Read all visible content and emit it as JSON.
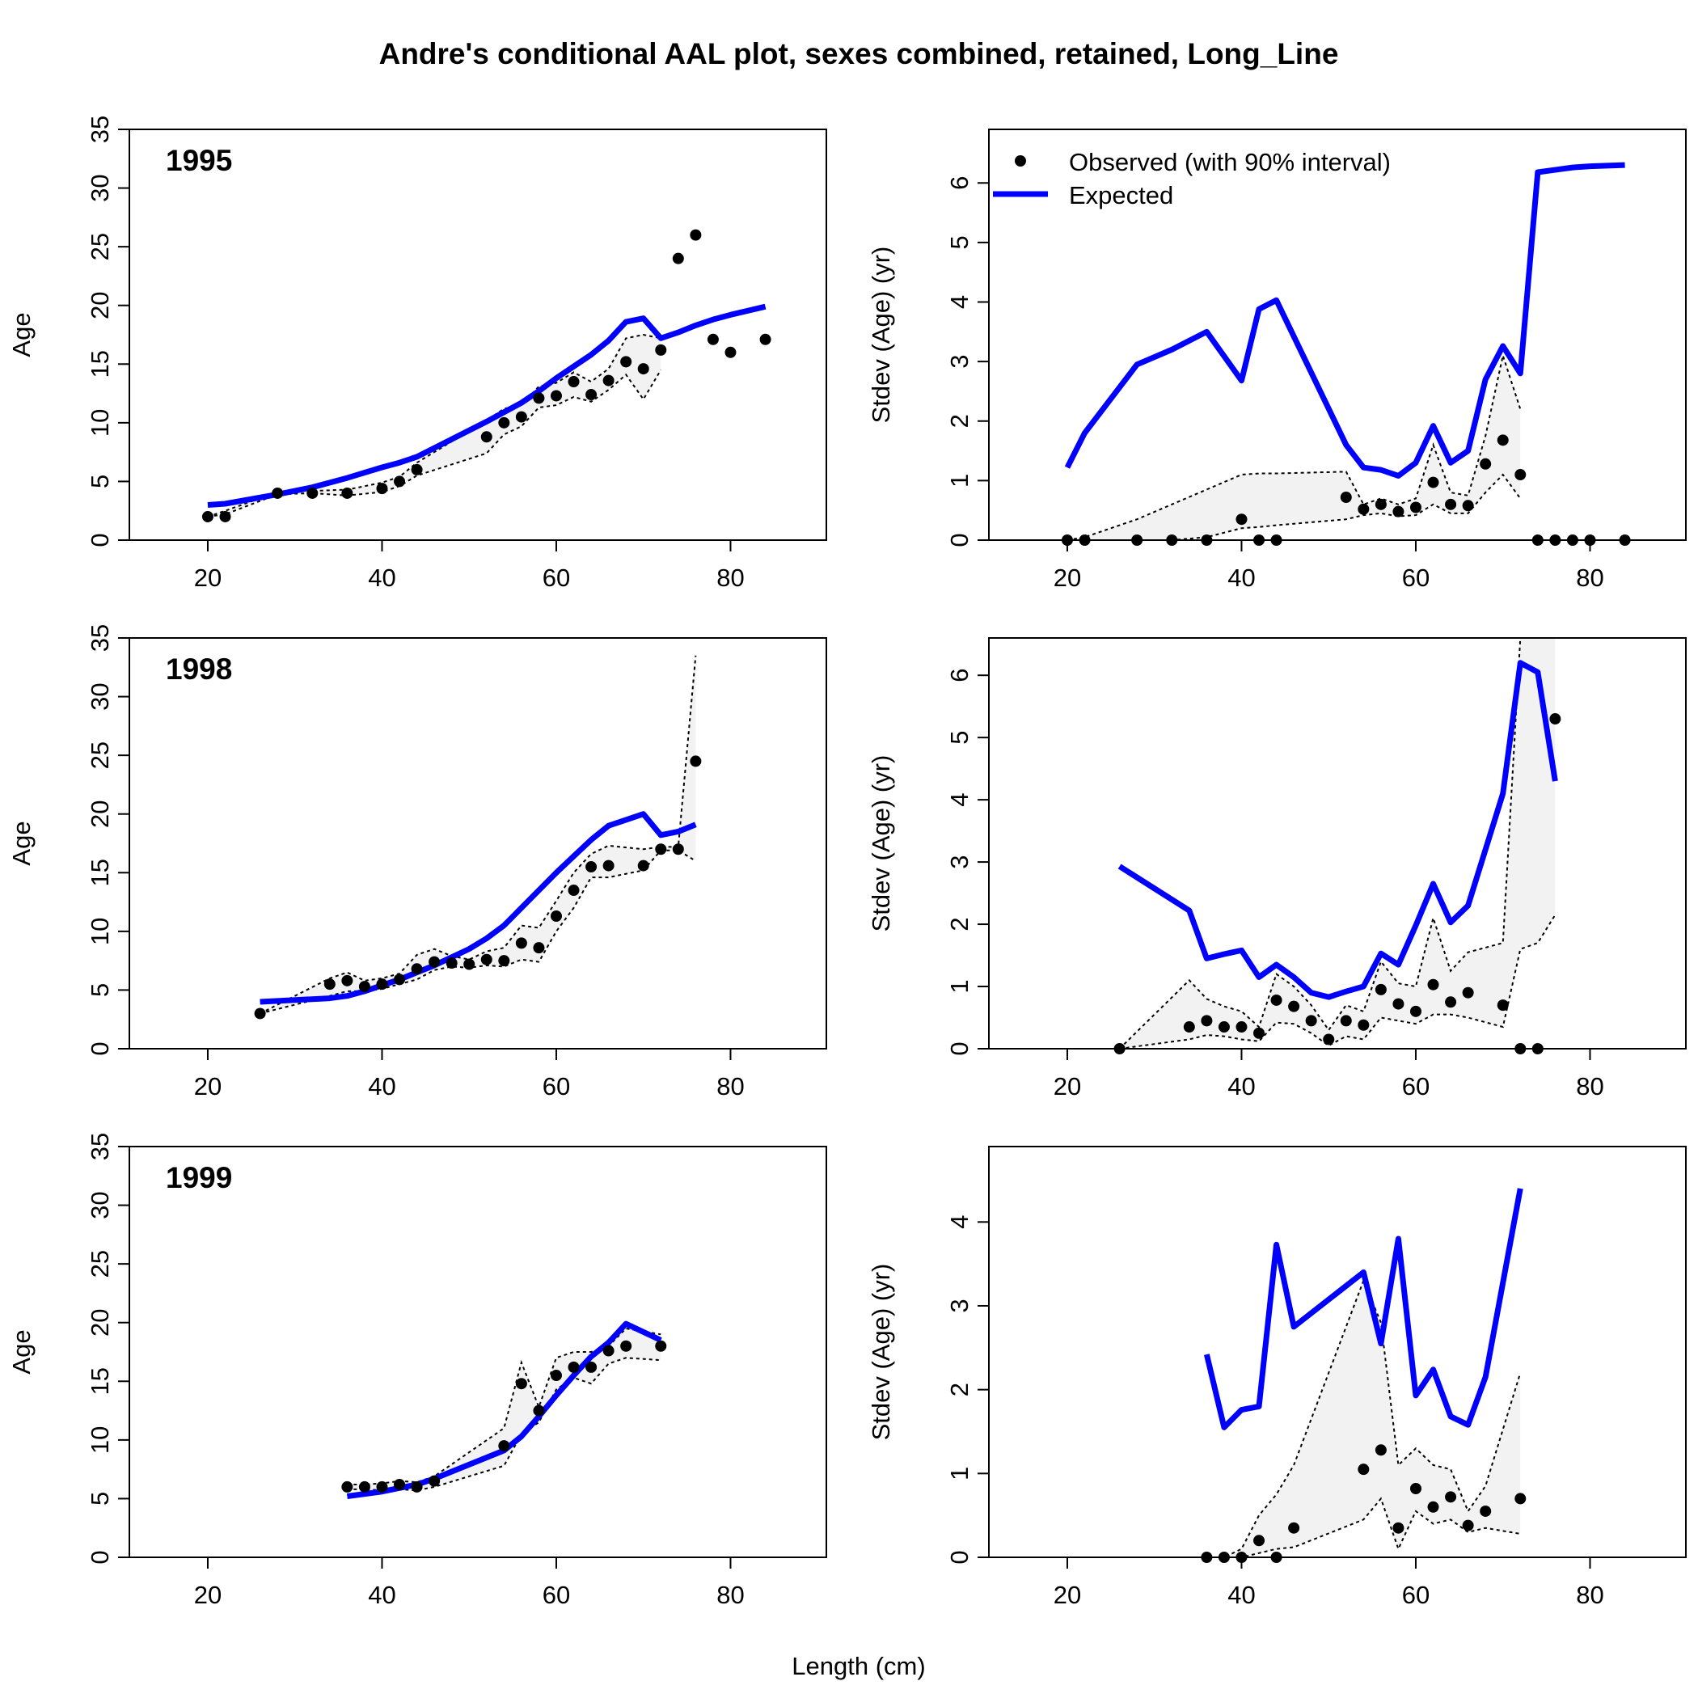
{
  "figure": {
    "title": "Andre's conditional AAL plot, sexes combined, retained, Long_Line",
    "xlabel": "Length (cm)"
  },
  "legend": {
    "observed_label": "Observed (with 90% interval)",
    "expected_label": "Expected",
    "placement": "top-left"
  },
  "colors": {
    "expected": "#0000ff",
    "observed": "#000000",
    "interval_fill": "#f2f2f2",
    "interval_line": "#000000"
  },
  "chart_data": [
    {
      "type": "line",
      "year": "1995",
      "ylabel": "Age",
      "xlim": [
        11,
        91
      ],
      "ylim": [
        0,
        35
      ],
      "xticks": [
        20,
        40,
        60,
        80
      ],
      "yticks": [
        0,
        5,
        10,
        15,
        20,
        25,
        30,
        35
      ],
      "x": [
        20,
        22,
        28,
        32,
        36,
        40,
        42,
        44,
        52,
        54,
        56,
        58,
        60,
        62,
        64,
        66,
        68,
        70,
        72,
        74,
        76,
        78,
        80,
        84
      ],
      "observed": [
        2,
        2,
        4,
        4,
        4,
        4.4,
        5,
        6,
        8.8,
        10,
        10.5,
        12.1,
        12.3,
        13.5,
        12.4,
        13.6,
        15.2,
        14.6,
        16.2,
        24,
        26,
        17.1,
        16,
        17.1
      ],
      "expected": [
        3,
        3.1,
        3.9,
        4.5,
        5.3,
        6.2,
        6.6,
        7.1,
        10.1,
        10.9,
        11.7,
        12.7,
        13.8,
        14.8,
        15.8,
        17,
        18.6,
        18.9,
        17.2,
        17.7,
        18.3,
        18.8,
        19.2,
        19.9
      ],
      "interval_lower": [
        2,
        2.2,
        3.9,
        4,
        3.8,
        4.1,
        4.6,
        5.5,
        7.4,
        9,
        9.7,
        11.3,
        11.5,
        12.2,
        11.8,
        12.8,
        14.1,
        12,
        14.5,
        null,
        null,
        null,
        null,
        null
      ],
      "interval_upper": [
        2,
        2.5,
        4.1,
        4.2,
        4.3,
        4.9,
        5.4,
        6.6,
        10.2,
        11.2,
        11.5,
        13.1,
        13.4,
        14.3,
        13.5,
        14.6,
        17.2,
        17.5,
        17.2,
        null,
        null,
        null,
        null,
        null
      ]
    },
    {
      "type": "line",
      "ylabel": "Stdev (Age) (yr)",
      "xlim": [
        11,
        91
      ],
      "ylim": [
        0,
        6.9
      ],
      "xticks": [
        20,
        40,
        60,
        80
      ],
      "yticks": [
        0,
        1,
        2,
        3,
        4,
        5,
        6
      ],
      "x": [
        20,
        22,
        28,
        32,
        36,
        40,
        42,
        44,
        52,
        54,
        56,
        58,
        60,
        62,
        64,
        66,
        68,
        70,
        72,
        74,
        76,
        78,
        80,
        84
      ],
      "observed": [
        0,
        0,
        0,
        0,
        0,
        0.35,
        0,
        0,
        0.72,
        0.52,
        0.6,
        0.48,
        0.55,
        0.97,
        0.6,
        0.58,
        1.28,
        1.68,
        1.1,
        0,
        0,
        0,
        0,
        0
      ],
      "expected": [
        1.22,
        1.8,
        2.95,
        3.2,
        3.5,
        2.68,
        3.88,
        4.03,
        1.6,
        1.22,
        1.18,
        1.08,
        1.3,
        1.92,
        1.3,
        1.5,
        2.7,
        3.26,
        2.8,
        6.18,
        6.22,
        6.26,
        6.28,
        6.3
      ],
      "interval_lower": [
        0,
        0,
        0,
        0,
        0.05,
        0.2,
        0.22,
        0.25,
        0.35,
        0.42,
        0.45,
        0.4,
        0.42,
        0.6,
        0.45,
        0.45,
        0.8,
        1.1,
        0.7,
        null,
        null,
        null,
        null,
        null
      ],
      "interval_upper": [
        0,
        0.05,
        0.35,
        0.6,
        0.85,
        1.1,
        1.12,
        1.12,
        1.15,
        0.6,
        0.7,
        0.6,
        0.7,
        1.6,
        0.8,
        0.75,
        1.75,
        3.1,
        2.2,
        null,
        null,
        null,
        null,
        null
      ]
    },
    {
      "type": "line",
      "year": "1998",
      "ylabel": "Age",
      "xlim": [
        11,
        91
      ],
      "ylim": [
        0,
        35
      ],
      "xticks": [
        20,
        40,
        60,
        80
      ],
      "yticks": [
        0,
        5,
        10,
        15,
        20,
        25,
        30,
        35
      ],
      "x": [
        26,
        34,
        36,
        38,
        40,
        42,
        44,
        46,
        48,
        50,
        52,
        54,
        56,
        58,
        60,
        62,
        64,
        66,
        70,
        72,
        74,
        76
      ],
      "observed": [
        3,
        5.5,
        5.8,
        5.3,
        5.5,
        5.9,
        6.8,
        7.4,
        7.3,
        7.2,
        7.6,
        7.5,
        9,
        8.6,
        11.3,
        13.5,
        15.5,
        15.6,
        15.6,
        17,
        17,
        24.5
      ],
      "expected": [
        4,
        4.3,
        4.5,
        4.9,
        5.4,
        5.9,
        6.5,
        7.1,
        7.8,
        8.5,
        9.4,
        10.5,
        12,
        13.5,
        15,
        16.4,
        17.8,
        19,
        20,
        18.2,
        18.5,
        19.1
      ],
      "interval_lower": [
        3,
        4.5,
        4.9,
        4.9,
        5.1,
        5.5,
        5.9,
        6.7,
        7,
        6.9,
        7.1,
        7,
        7.6,
        7.4,
        10,
        12,
        14.6,
        14.6,
        15.2,
        16.9,
        16.9,
        16
      ],
      "interval_upper": [
        3,
        6,
        6.5,
        5.8,
        6,
        6.4,
        8,
        8.5,
        7.9,
        7.6,
        8.3,
        8.6,
        10.5,
        10.3,
        12.6,
        15,
        16.6,
        17.3,
        17,
        17.2,
        17.2,
        33.5
      ]
    },
    {
      "type": "line",
      "ylabel": "Stdev (Age) (yr)",
      "xlim": [
        11,
        91
      ],
      "ylim": [
        0,
        6.6
      ],
      "xticks": [
        20,
        40,
        60,
        80
      ],
      "yticks": [
        0,
        1,
        2,
        3,
        4,
        5,
        6
      ],
      "x": [
        26,
        34,
        36,
        38,
        40,
        42,
        44,
        46,
        48,
        50,
        52,
        54,
        56,
        58,
        60,
        62,
        64,
        66,
        70,
        72,
        74,
        76
      ],
      "observed": [
        0,
        0.35,
        0.45,
        0.35,
        0.35,
        0.25,
        0.78,
        0.68,
        0.45,
        0.15,
        0.45,
        0.38,
        0.95,
        0.72,
        0.6,
        1.03,
        0.75,
        0.9,
        0.7,
        0,
        0,
        5.3
      ],
      "expected": [
        2.93,
        2.22,
        1.45,
        1.52,
        1.58,
        1.15,
        1.35,
        1.15,
        0.9,
        0.83,
        0.92,
        1,
        1.53,
        1.35,
        1.98,
        2.65,
        2.03,
        2.3,
        4.1,
        6.2,
        6.05,
        4.3
      ],
      "interval_lower": [
        0,
        0.15,
        0.22,
        0.2,
        0.15,
        0.12,
        0.42,
        0.4,
        0.25,
        0.05,
        0.2,
        0.15,
        0.5,
        0.45,
        0.4,
        0.55,
        0.55,
        0.5,
        0.35,
        1.6,
        1.7,
        2.15
      ],
      "interval_upper": [
        0,
        1.1,
        0.8,
        0.68,
        0.6,
        0.35,
        1.2,
        1,
        0.7,
        0.3,
        0.7,
        0.6,
        1.4,
        1.05,
        1,
        2.1,
        1.25,
        1.55,
        1.7,
        6.6,
        6.6,
        6.6
      ]
    },
    {
      "type": "line",
      "year": "1999",
      "ylabel": "Age",
      "xlim": [
        11,
        91
      ],
      "ylim": [
        0,
        35
      ],
      "xticks": [
        20,
        40,
        60,
        80
      ],
      "yticks": [
        0,
        5,
        10,
        15,
        20,
        25,
        30,
        35
      ],
      "x": [
        36,
        38,
        40,
        42,
        44,
        46,
        54,
        56,
        58,
        60,
        62,
        64,
        66,
        68,
        72
      ],
      "observed": [
        6,
        6,
        6,
        6.2,
        6,
        6.5,
        9.5,
        14.8,
        12.5,
        15.5,
        16.2,
        16.2,
        17.6,
        18,
        18
      ],
      "expected": [
        5.2,
        5.4,
        5.6,
        5.9,
        6.2,
        6.7,
        9.1,
        10.3,
        12,
        13.8,
        15.5,
        17.1,
        18.3,
        19.9,
        18.5
      ],
      "interval_lower": [
        5.8,
        5.8,
        5.7,
        5.8,
        5.7,
        6,
        7.8,
        10.5,
        11.5,
        14.3,
        15.3,
        14.8,
        16.5,
        17,
        16.8
      ],
      "interval_upper": [
        6.2,
        6.2,
        6.3,
        6.5,
        6.4,
        6.9,
        11,
        16.6,
        12.8,
        17,
        17.5,
        17.5,
        18,
        19.5,
        19
      ]
    },
    {
      "type": "line",
      "ylabel": "Stdev (Age) (yr)",
      "xlim": [
        11,
        91
      ],
      "ylim": [
        0,
        4.9
      ],
      "xticks": [
        20,
        40,
        60,
        80
      ],
      "yticks": [
        0,
        1,
        2,
        3,
        4
      ],
      "x": [
        36,
        38,
        40,
        42,
        44,
        46,
        54,
        56,
        58,
        60,
        62,
        64,
        66,
        68,
        72
      ],
      "observed": [
        0,
        0,
        0,
        0.2,
        0,
        0.35,
        1.05,
        1.28,
        0.35,
        0.82,
        0.6,
        0.72,
        0.38,
        0.55,
        0.7
      ],
      "expected": [
        2.42,
        1.55,
        1.76,
        1.8,
        3.73,
        2.75,
        3.4,
        2.55,
        3.8,
        1.93,
        2.24,
        1.68,
        1.58,
        2.15,
        4.4
      ],
      "interval_lower": [
        0,
        0,
        0,
        0.05,
        0.1,
        0.12,
        0.45,
        0.7,
        0.1,
        0.55,
        0.4,
        0.45,
        0.3,
        0.35,
        0.28
      ],
      "interval_upper": [
        0,
        0,
        0.1,
        0.5,
        0.75,
        1.1,
        3.3,
        2.8,
        1.1,
        1.3,
        1.1,
        1.05,
        0.55,
        0.85,
        2.2
      ]
    }
  ]
}
